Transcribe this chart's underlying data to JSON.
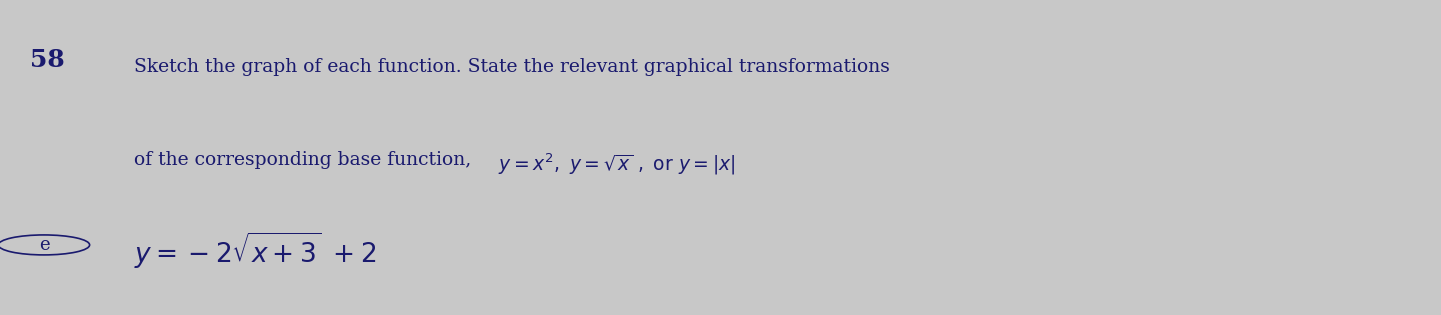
{
  "background_color": "#c8c8c8",
  "problem_number": "58",
  "circle_label": "e",
  "header_line1": "Sketch the graph of each function. State the relevant graphical transformations",
  "header_line2_plain": "of the corresponding base function, ",
  "header_math": "y = x², y = √x , or y = |x|",
  "function_label": "y = -2",
  "function_sqrt_content": "x + 3",
  "function_end": " + 2",
  "font_color": "#1a1a6e",
  "font_size_header": 13.5,
  "font_size_body": 16,
  "font_size_number": 18,
  "font_size_circle": 13
}
